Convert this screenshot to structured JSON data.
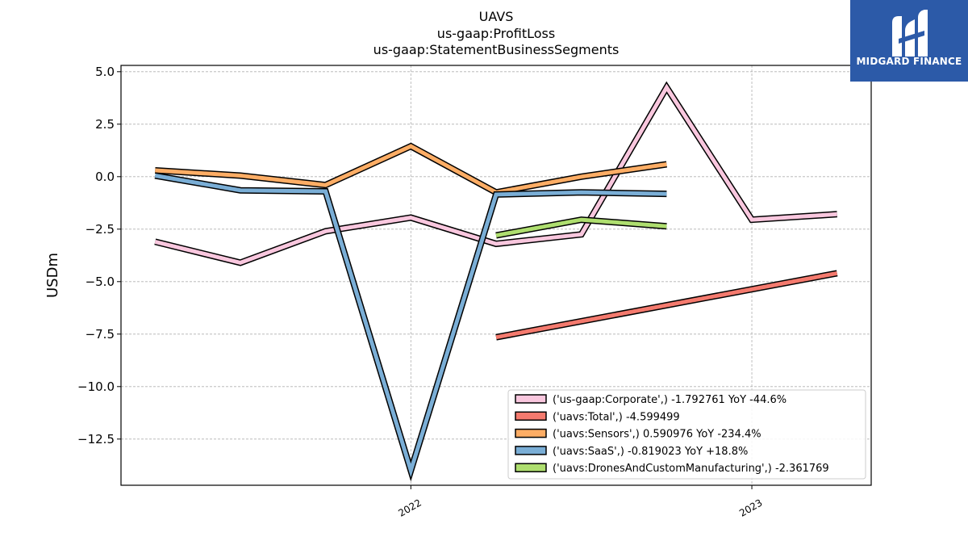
{
  "brand": {
    "name": "MIDGARD FINANCE"
  },
  "chart_data": {
    "type": "line",
    "title_lines": [
      "UAVS",
      "us-gaap:ProfitLoss",
      "us-gaap:StatementBusinessSegments"
    ],
    "ylabel": "USDm",
    "xlabel": "",
    "ylim": [
      -14.7,
      5.3
    ],
    "xlim": [
      2021.15,
      2023.35
    ],
    "yticks": [
      5.0,
      2.5,
      0.0,
      -2.5,
      -5.0,
      -7.5,
      -10.0,
      -12.5
    ],
    "ytick_labels": [
      "5.0",
      "2.5",
      "0.0",
      "−2.5",
      "−5.0",
      "−7.5",
      "−10.0",
      "−12.5"
    ],
    "xticks": [
      2022,
      2023
    ],
    "xtick_labels": [
      "2022",
      "2023"
    ],
    "grid": true,
    "legend_position": "bottom-right",
    "series": [
      {
        "name": "('us-gaap:Corporate',) -1.792761 YoY -44.6%",
        "color": "#f9c7de",
        "x": [
          2021.25,
          2021.5,
          2021.75,
          2022.0,
          2022.25,
          2022.5,
          2022.75,
          2023.0,
          2023.25
        ],
        "y": [
          -3.1,
          -4.1,
          -2.6,
          -1.95,
          -3.2,
          -2.75,
          4.25,
          -2.05,
          -1.79
        ]
      },
      {
        "name": "('uavs:Total',) -4.599499",
        "color": "#f47a6e",
        "x": [
          2022.25,
          2023.25
        ],
        "y": [
          -7.65,
          -4.6
        ]
      },
      {
        "name": "('uavs:Sensors',) 0.590976 YoY -234.4%",
        "color": "#fdad65",
        "x": [
          2021.25,
          2021.5,
          2021.75,
          2022.0,
          2022.25,
          2022.5,
          2022.75
        ],
        "y": [
          0.3,
          0.05,
          -0.4,
          1.45,
          -0.75,
          0.0,
          0.59
        ]
      },
      {
        "name": "('uavs:SaaS',) -0.819023 YoY +18.8%",
        "color": "#7aaed6",
        "x": [
          2021.25,
          2021.5,
          2021.75,
          2022.0,
          2022.25,
          2022.5,
          2022.75
        ],
        "y": [
          0.05,
          -0.65,
          -0.7,
          -14.0,
          -0.85,
          -0.75,
          -0.82
        ]
      },
      {
        "name": "('uavs:DronesAndCustomManufacturing',) -2.361769",
        "color": "#aede6f",
        "x": [
          2022.25,
          2022.5,
          2022.75
        ],
        "y": [
          -2.8,
          -2.05,
          -2.36
        ]
      }
    ]
  }
}
